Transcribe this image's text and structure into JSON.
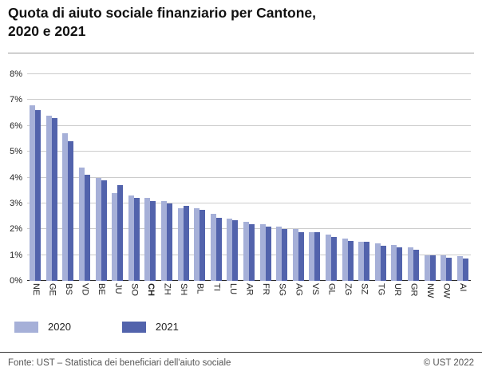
{
  "title": "Quota di aiuto sociale finanziario per Cantone,\n2020 e 2021",
  "chart_data": {
    "type": "bar",
    "title": "Quota di aiuto sociale finanziario per Cantone, 2020 e 2021",
    "categories": [
      "NE",
      "GE",
      "BS",
      "VD",
      "BE",
      "JU",
      "SO",
      "CH",
      "ZH",
      "SH",
      "BL",
      "TI",
      "LU",
      "AR",
      "FR",
      "SG",
      "AG",
      "VS",
      "GL",
      "ZG",
      "SZ",
      "TG",
      "UR",
      "GR",
      "NW",
      "OW",
      "AI"
    ],
    "emphasized_category": "CH",
    "series": [
      {
        "name": "2020",
        "color": "#a6b0d8",
        "values": [
          6.8,
          6.4,
          5.7,
          4.4,
          4.0,
          3.4,
          3.3,
          3.2,
          3.1,
          2.8,
          2.8,
          2.6,
          2.4,
          2.3,
          2.2,
          2.1,
          2.0,
          1.9,
          1.8,
          1.65,
          1.5,
          1.45,
          1.4,
          1.3,
          1.0,
          1.0,
          0.95
        ]
      },
      {
        "name": "2021",
        "color": "#5263ac",
        "values": [
          6.6,
          6.3,
          5.4,
          4.1,
          3.9,
          3.7,
          3.2,
          3.1,
          3.0,
          2.9,
          2.75,
          2.45,
          2.35,
          2.2,
          2.1,
          2.0,
          1.9,
          1.9,
          1.7,
          1.55,
          1.5,
          1.35,
          1.3,
          1.2,
          1.0,
          0.9,
          0.85
        ]
      }
    ],
    "unit": "%",
    "xlabel": "",
    "ylabel": "",
    "ylim": [
      0,
      8
    ],
    "yticks": [
      "0%",
      "1%",
      "2%",
      "3%",
      "4%",
      "5%",
      "6%",
      "7%",
      "8%"
    ],
    "grid": true,
    "legend_position": "bottom-left"
  },
  "footer": {
    "source": "Fonte: UST – Statistica dei beneficiari dell'aiuto sociale",
    "copyright": "© UST 2022"
  }
}
